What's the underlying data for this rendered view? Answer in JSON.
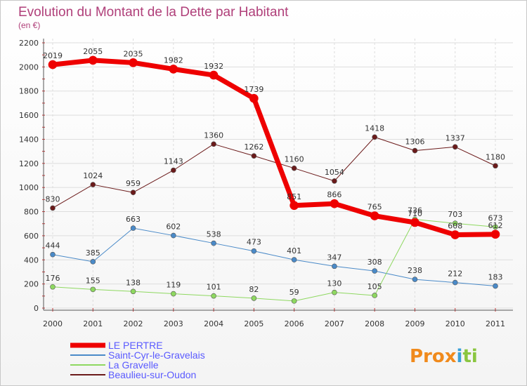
{
  "chart_data": {
    "type": "line",
    "title": "Evolution du Montant de la Dette par Habitant",
    "subtitle": "(en €)",
    "categories": [
      "2000",
      "2001",
      "2002",
      "2003",
      "2004",
      "2005",
      "2006",
      "2007",
      "2008",
      "2009",
      "2010",
      "2011"
    ],
    "ylim": [
      0,
      2200
    ],
    "yticks": [
      0,
      200,
      400,
      600,
      800,
      1000,
      1200,
      1400,
      1600,
      1800,
      2000,
      2200
    ],
    "grid": true,
    "legend_position": "bottom-left",
    "series": [
      {
        "name": "Beaulieu-sur-Oudon",
        "color": "#6b1a1a",
        "width": 1,
        "values": [
          830,
          1024,
          959,
          1143,
          1360,
          1262,
          1160,
          1054,
          1418,
          1306,
          1337,
          1180
        ]
      },
      {
        "name": "Saint-Cyr-le-Gravelais",
        "color": "#4a8ac8",
        "width": 1,
        "values": [
          444,
          385,
          663,
          602,
          538,
          473,
          401,
          347,
          308,
          238,
          212,
          183
        ]
      },
      {
        "name": "La Gravelle",
        "color": "#8ed860",
        "width": 1,
        "values": [
          176,
          155,
          138,
          119,
          101,
          82,
          59,
          130,
          105,
          736,
          703,
          673
        ]
      },
      {
        "name": "LE PERTRE",
        "color": "#ee0000",
        "width": 7,
        "values": [
          2019,
          2055,
          2035,
          1982,
          1932,
          1739,
          851,
          866,
          765,
          710,
          608,
          612
        ]
      }
    ],
    "legend_order": [
      "LE PERTRE",
      "Saint-Cyr-le-Gravelais",
      "La Gravelle",
      "Beaulieu-sur-Oudon"
    ]
  },
  "logo": {
    "text": "Prox",
    "mid": "i",
    "end": "ti"
  }
}
